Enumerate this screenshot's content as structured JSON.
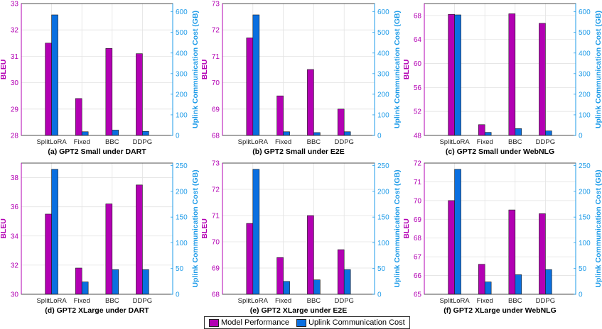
{
  "colors": {
    "model_performance": "#B300B3",
    "uplink_cost": "#0A6FE0",
    "left_axis": "#B300B3",
    "right_axis": "#1E9BE8"
  },
  "legend": {
    "model_performance_label": "Model Performance",
    "uplink_cost_label": "Uplink Communication Cost"
  },
  "chart_data": [
    {
      "type": "bar",
      "title": "(a) GPT2 Small under DART",
      "categories": [
        "SplitLoRA",
        "Fixed",
        "BBC",
        "DDPG"
      ],
      "series": [
        {
          "name": "Model Performance",
          "axis": "left",
          "values": [
            31.5,
            29.4,
            31.3,
            31.1
          ]
        },
        {
          "name": "Uplink Communication Cost",
          "axis": "right",
          "values": [
            585,
            18,
            26,
            20
          ]
        }
      ],
      "ylabel": "BLEU",
      "ylim": [
        28,
        33
      ],
      "yticks": [
        28,
        29,
        30,
        31,
        32,
        33
      ],
      "y2label": "Uplink Communication Cost (GB)",
      "y2lim": [
        0,
        640
      ],
      "y2ticks": [
        0,
        100,
        200,
        300,
        400,
        500,
        600
      ],
      "grid": true
    },
    {
      "type": "bar",
      "title": "(b) GPT2 Small under E2E",
      "categories": [
        "SplitLoRA",
        "Fixed",
        "BBC",
        "DDPG"
      ],
      "series": [
        {
          "name": "Model Performance",
          "axis": "left",
          "values": [
            71.7,
            69.5,
            70.5,
            69.0
          ]
        },
        {
          "name": "Uplink Communication Cost",
          "axis": "right",
          "values": [
            585,
            18,
            14,
            18
          ]
        }
      ],
      "ylabel": "BLEU",
      "ylim": [
        68,
        73
      ],
      "yticks": [
        68,
        69,
        70,
        71,
        72,
        73
      ],
      "y2label": "Uplink Communication Cost (GB)",
      "y2lim": [
        0,
        640
      ],
      "y2ticks": [
        0,
        100,
        200,
        300,
        400,
        500,
        600
      ],
      "grid": true
    },
    {
      "type": "bar",
      "title": "(c) GPT2 Small under WebNLG",
      "categories": [
        "SplitLoRA",
        "Fixed",
        "BBC",
        "DDPG"
      ],
      "series": [
        {
          "name": "Model Performance",
          "axis": "left",
          "values": [
            68.2,
            49.8,
            68.3,
            66.7
          ]
        },
        {
          "name": "Uplink Communication Cost",
          "axis": "right",
          "values": [
            585,
            15,
            33,
            22
          ]
        }
      ],
      "ylabel": "BLEU",
      "ylim": [
        48,
        70
      ],
      "yticks": [
        48,
        52,
        56,
        60,
        64,
        68
      ],
      "y2label": "Uplink Communication Cost (GB)",
      "y2lim": [
        0,
        640
      ],
      "y2ticks": [
        0,
        100,
        200,
        300,
        400,
        500,
        600
      ],
      "grid": true
    },
    {
      "type": "bar",
      "title": "(d) GPT2 XLarge under DART",
      "categories": [
        "SplitLoRA",
        "Fixed",
        "BBC",
        "DDPG"
      ],
      "series": [
        {
          "name": "Model Performance",
          "axis": "left",
          "values": [
            35.5,
            31.8,
            36.2,
            37.5
          ]
        },
        {
          "name": "Uplink Communication Cost",
          "axis": "right",
          "values": [
            243,
            24,
            48,
            48
          ]
        }
      ],
      "ylabel": "BLEU",
      "ylim": [
        30,
        39
      ],
      "yticks": [
        30,
        32,
        34,
        36,
        38
      ],
      "y2label": "Uplink Communication Cost (GB)",
      "y2lim": [
        0,
        255
      ],
      "y2ticks": [
        0,
        50,
        100,
        150,
        200,
        250
      ],
      "grid": true
    },
    {
      "type": "bar",
      "title": "(e) GPT2 XLarge under E2E",
      "categories": [
        "SplitLoRA",
        "Fixed",
        "BBC",
        "DDPG"
      ],
      "series": [
        {
          "name": "Model Performance",
          "axis": "left",
          "values": [
            70.7,
            69.4,
            71.0,
            69.7
          ]
        },
        {
          "name": "Uplink Communication Cost",
          "axis": "right",
          "values": [
            243,
            25,
            28,
            48
          ]
        }
      ],
      "ylabel": "BLEU",
      "ylim": [
        68,
        73
      ],
      "yticks": [
        68,
        69,
        70,
        71,
        72,
        73
      ],
      "y2label": "Uplink Communication Cost (GB)",
      "y2lim": [
        0,
        255
      ],
      "y2ticks": [
        0,
        50,
        100,
        150,
        200,
        250
      ],
      "grid": true
    },
    {
      "type": "bar",
      "title": "(f) GPT2 XLarge under WebNLG",
      "categories": [
        "SplitLoRA",
        "Fixed",
        "BBC",
        "DDPG"
      ],
      "series": [
        {
          "name": "Model Performance",
          "axis": "left",
          "values": [
            70.0,
            66.6,
            69.5,
            69.3
          ]
        },
        {
          "name": "Uplink Communication Cost",
          "axis": "right",
          "values": [
            243,
            24,
            38,
            48
          ]
        }
      ],
      "ylabel": "BLEU",
      "ylim": [
        65,
        72
      ],
      "yticks": [
        65,
        66,
        67,
        68,
        69,
        70,
        71,
        72
      ],
      "y2label": "Uplink Communication Cost (GB)",
      "y2lim": [
        0,
        255
      ],
      "y2ticks": [
        0,
        50,
        100,
        150,
        200,
        250
      ],
      "grid": true
    }
  ]
}
